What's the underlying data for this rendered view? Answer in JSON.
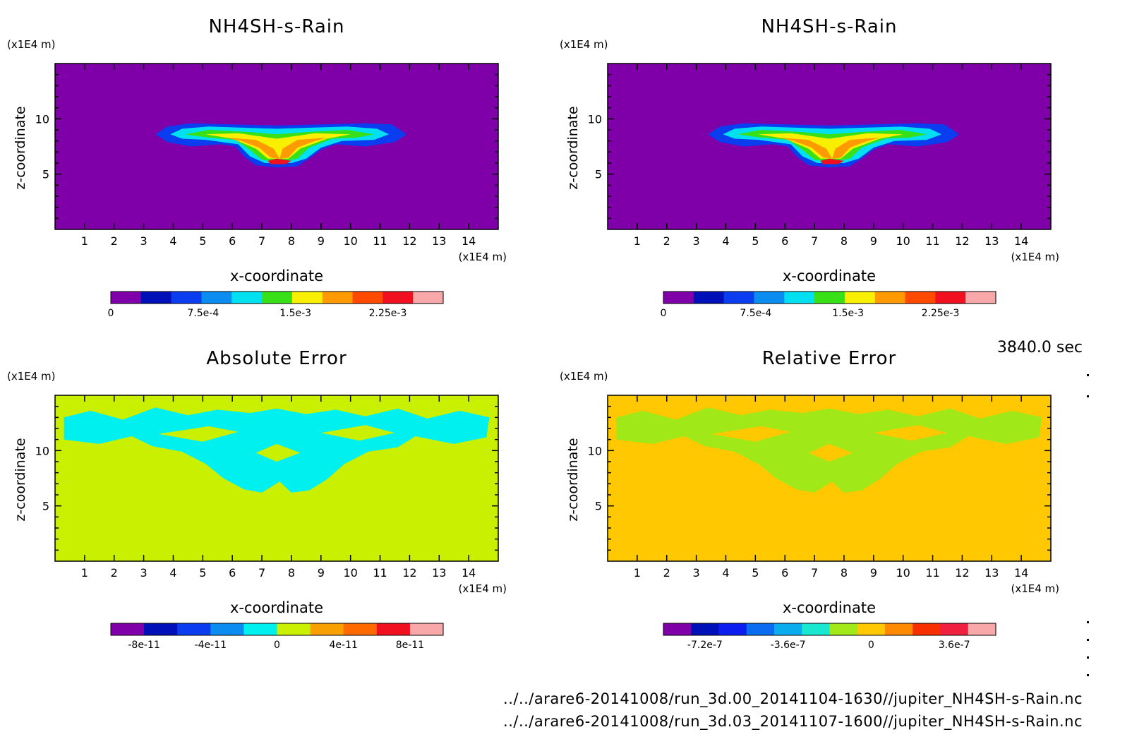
{
  "timestamp": "3840.0 sec",
  "footer": {
    "line1": "../../arare6-20141008/run_3d.00_20141104-1630//jupiter_NH4SH-s-Rain.nc",
    "line2": "../../arare6-20141008/run_3d.03_20141107-1600//jupiter_NH4SH-s-Rain.nc"
  },
  "chart_data": [
    {
      "type": "heatmap",
      "title": "NH4SH-s-Rain",
      "xlabel": "x-coordinate",
      "ylabel": "z-coordinate",
      "x_unit": "(x1E4 m)",
      "y_unit": "(x1E4 m)",
      "xlim": [
        0,
        15
      ],
      "ylim": [
        0,
        15
      ],
      "xticks": [
        "1",
        "2",
        "3",
        "4",
        "5",
        "6",
        "7",
        "8",
        "9",
        "10",
        "11",
        "12",
        "13",
        "14"
      ],
      "yticks": [
        "5",
        "10"
      ],
      "background_color": "#7f00a8",
      "colorbar": {
        "colors": [
          "#7f00a8",
          "#0010b8",
          "#0a3cf0",
          "#0a8cf0",
          "#00e0f0",
          "#38e018",
          "#f8f000",
          "#ff9a00",
          "#ff4a00",
          "#f01020",
          "#f8a8a8"
        ],
        "tick_labels": [
          "0",
          "7.5e-4",
          "1.5e-3",
          "2.25e-3"
        ],
        "tick_values": [
          0,
          0.00075,
          0.0015,
          0.00225
        ],
        "range": [
          0,
          0.0027
        ]
      }
    },
    {
      "type": "heatmap",
      "title": "NH4SH-s-Rain",
      "xlabel": "x-coordinate",
      "ylabel": "z-coordinate",
      "x_unit": "(x1E4 m)",
      "y_unit": "(x1E4 m)",
      "xlim": [
        0,
        15
      ],
      "ylim": [
        0,
        15
      ],
      "xticks": [
        "1",
        "2",
        "3",
        "4",
        "5",
        "6",
        "7",
        "8",
        "9",
        "10",
        "11",
        "12",
        "13",
        "14"
      ],
      "yticks": [
        "5",
        "10"
      ],
      "background_color": "#7f00a8",
      "colorbar": {
        "colors": [
          "#7f00a8",
          "#0010b8",
          "#0a3cf0",
          "#0a8cf0",
          "#00e0f0",
          "#38e018",
          "#f8f000",
          "#ff9a00",
          "#ff4a00",
          "#f01020",
          "#f8a8a8"
        ],
        "tick_labels": [
          "0",
          "7.5e-4",
          "1.5e-3",
          "2.25e-3"
        ],
        "tick_values": [
          0,
          0.00075,
          0.0015,
          0.00225
        ],
        "range": [
          0,
          0.0027
        ]
      }
    },
    {
      "type": "heatmap",
      "title": "Absolute Error",
      "xlabel": "x-coordinate",
      "ylabel": "z-coordinate",
      "x_unit": "(x1E4 m)",
      "y_unit": "(x1E4 m)",
      "xlim": [
        0,
        15
      ],
      "ylim": [
        0,
        15
      ],
      "xticks": [
        "1",
        "2",
        "3",
        "4",
        "5",
        "6",
        "7",
        "8",
        "9",
        "10",
        "11",
        "12",
        "13",
        "14"
      ],
      "yticks": [
        "5",
        "10"
      ],
      "background_color": "#c8f000",
      "region_color": "#00f0f0",
      "colorbar": {
        "colors": [
          "#7f00a8",
          "#0010b8",
          "#0a3cf0",
          "#0a8cf0",
          "#00f0f0",
          "#c8f000",
          "#f8a000",
          "#ff6a00",
          "#f01020",
          "#f8a8a8"
        ],
        "tick_labels": [
          "-8e-11",
          "-4e-11",
          "0",
          "4e-11",
          "8e-11"
        ],
        "tick_values": [
          -8e-11,
          -4e-11,
          0,
          4e-11,
          8e-11
        ],
        "range": [
          -1e-10,
          1e-10
        ]
      }
    },
    {
      "type": "heatmap",
      "title": "Relative Error",
      "xlabel": "x-coordinate",
      "ylabel": "z-coordinate",
      "x_unit": "(x1E4 m)",
      "y_unit": "(x1E4 m)",
      "xlim": [
        0,
        15
      ],
      "ylim": [
        0,
        15
      ],
      "xticks": [
        "1",
        "2",
        "3",
        "4",
        "5",
        "6",
        "7",
        "8",
        "9",
        "10",
        "11",
        "12",
        "13",
        "14"
      ],
      "yticks": [
        "5",
        "10"
      ],
      "background_color": "#ffc800",
      "region_color": "#a0e818",
      "colorbar": {
        "colors": [
          "#7f00a8",
          "#0010b8",
          "#0a1ef0",
          "#0a6cf0",
          "#0aacf0",
          "#18e8d0",
          "#a0e818",
          "#ffc800",
          "#ff8a00",
          "#f83000",
          "#f02040",
          "#f8a8a8"
        ],
        "tick_labels": [
          "-7.2e-7",
          "-3.6e-7",
          "0",
          "3.6e-7"
        ],
        "tick_values": [
          -7.2e-07,
          -3.6e-07,
          0,
          3.6e-07
        ],
        "range": [
          -9e-07,
          5.4e-07
        ]
      }
    }
  ]
}
